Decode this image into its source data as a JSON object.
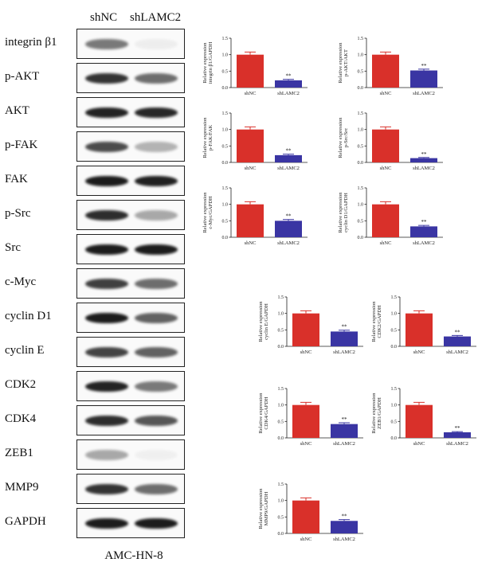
{
  "blot": {
    "lanes": [
      "shNC",
      "shLAMC2"
    ],
    "cell_line": "AMC-HN-8",
    "rows": [
      {
        "label": "integrin β1",
        "intensity": [
          0.55,
          0.05
        ]
      },
      {
        "label": "p-AKT",
        "intensity": [
          0.85,
          0.6
        ]
      },
      {
        "label": "AKT",
        "intensity": [
          0.92,
          0.9
        ]
      },
      {
        "label": "p-FAK",
        "intensity": [
          0.75,
          0.3
        ]
      },
      {
        "label": "FAK",
        "intensity": [
          0.95,
          0.93
        ]
      },
      {
        "label": "p-Src",
        "intensity": [
          0.88,
          0.35
        ]
      },
      {
        "label": "Src",
        "intensity": [
          0.95,
          0.95
        ]
      },
      {
        "label": "c-Myc",
        "intensity": [
          0.8,
          0.6
        ]
      },
      {
        "label": "cyclin D1",
        "intensity": [
          0.95,
          0.65
        ]
      },
      {
        "label": "cyclin E",
        "intensity": [
          0.78,
          0.65
        ]
      },
      {
        "label": "CDK2",
        "intensity": [
          0.92,
          0.55
        ]
      },
      {
        "label": "CDK4",
        "intensity": [
          0.88,
          0.7
        ]
      },
      {
        "label": "ZEB1",
        "intensity": [
          0.35,
          0.04
        ]
      },
      {
        "label": "MMP9",
        "intensity": [
          0.85,
          0.6
        ]
      },
      {
        "label": "GAPDH",
        "intensity": [
          0.95,
          0.95
        ]
      }
    ]
  },
  "colors": {
    "shNC": "#d9302a",
    "shLAMC2": "#3a35a3",
    "errorbar_shNC": "#d9302a",
    "errorbar_shLAMC2": "#3a35a3"
  },
  "chart_data": [
    {
      "type": "bar",
      "ylabel": [
        "Relative expression",
        "integrin β1/GAPDH"
      ],
      "categories": [
        "shNC",
        "shLAMC2"
      ],
      "values": [
        1.0,
        0.22
      ],
      "errors": [
        0.08,
        0.03
      ],
      "ylim": [
        0,
        1.5
      ],
      "yticks": [
        "0.0",
        "0.5",
        "1.0",
        "1.5"
      ],
      "significance": "**"
    },
    {
      "type": "bar",
      "ylabel": [
        "Relative expression",
        "p-AKT/AKT"
      ],
      "categories": [
        "shNC",
        "shLAMC2"
      ],
      "values": [
        1.0,
        0.52
      ],
      "errors": [
        0.08,
        0.04
      ],
      "ylim": [
        0,
        1.5
      ],
      "yticks": [
        "0.0",
        "0.5",
        "1.0",
        "1.5"
      ],
      "significance": "**"
    },
    {
      "type": "bar",
      "ylabel": [
        "Relative expression",
        "p-FAK/FAK"
      ],
      "categories": [
        "shNC",
        "shLAMC2"
      ],
      "values": [
        1.0,
        0.22
      ],
      "errors": [
        0.08,
        0.03
      ],
      "ylim": [
        0,
        1.5
      ],
      "yticks": [
        "0.0",
        "0.5",
        "1.0",
        "1.5"
      ],
      "significance": "**"
    },
    {
      "type": "bar",
      "ylabel": [
        "Relative expression",
        "p-Src/Src"
      ],
      "categories": [
        "shNC",
        "shLAMC2"
      ],
      "values": [
        1.0,
        0.13
      ],
      "errors": [
        0.08,
        0.02
      ],
      "ylim": [
        0,
        1.5
      ],
      "yticks": [
        "0.0",
        "0.5",
        "1.0",
        "1.5"
      ],
      "significance": "**"
    },
    {
      "type": "bar",
      "ylabel": [
        "Relative expression",
        "c-Myc/GAPDH"
      ],
      "categories": [
        "shNC",
        "shLAMC2"
      ],
      "values": [
        1.0,
        0.5
      ],
      "errors": [
        0.08,
        0.04
      ],
      "ylim": [
        0,
        1.5
      ],
      "yticks": [
        "0.0",
        "0.5",
        "1.0",
        "1.5"
      ],
      "significance": "**"
    },
    {
      "type": "bar",
      "ylabel": [
        "Relative expression",
        "cyclin D1/GAPDH"
      ],
      "categories": [
        "shNC",
        "shLAMC2"
      ],
      "values": [
        1.0,
        0.33
      ],
      "errors": [
        0.08,
        0.03
      ],
      "ylim": [
        0,
        1.5
      ],
      "yticks": [
        "0.0",
        "0.5",
        "1.0",
        "1.5"
      ],
      "significance": "**"
    },
    {
      "type": "bar",
      "ylabel": [
        "Relative expression",
        "cyclin E/GAPDH"
      ],
      "categories": [
        "shNC",
        "shLAMC2"
      ],
      "values": [
        1.0,
        0.45
      ],
      "errors": [
        0.08,
        0.04
      ],
      "ylim": [
        0,
        1.5
      ],
      "yticks": [
        "0.0",
        "0.5",
        "1.0",
        "1.5"
      ],
      "significance": "**"
    },
    {
      "type": "bar",
      "ylabel": [
        "Relative expression",
        "CDK2/GAPDH"
      ],
      "categories": [
        "shNC",
        "shLAMC2"
      ],
      "values": [
        1.0,
        0.3
      ],
      "errors": [
        0.08,
        0.03
      ],
      "ylim": [
        0,
        1.5
      ],
      "yticks": [
        "0.0",
        "0.5",
        "1.0",
        "1.5"
      ],
      "significance": "**"
    },
    {
      "type": "bar",
      "ylabel": [
        "Relative expression",
        "CDK4/GAPDH"
      ],
      "categories": [
        "shNC",
        "shLAMC2"
      ],
      "values": [
        1.0,
        0.42
      ],
      "errors": [
        0.08,
        0.04
      ],
      "ylim": [
        0,
        1.5
      ],
      "yticks": [
        "0.0",
        "0.5",
        "1.0",
        "1.5"
      ],
      "significance": "**"
    },
    {
      "type": "bar",
      "ylabel": [
        "Relative expression",
        "ZEB1/GAPDH"
      ],
      "categories": [
        "shNC",
        "shLAMC2"
      ],
      "values": [
        1.0,
        0.17
      ],
      "errors": [
        0.08,
        0.02
      ],
      "ylim": [
        0,
        1.5
      ],
      "yticks": [
        "0.0",
        "0.5",
        "1.0",
        "1.5"
      ],
      "significance": "**"
    },
    {
      "type": "bar",
      "ylabel": [
        "Relative expression",
        "MMP9/GAPDH"
      ],
      "categories": [
        "shNC",
        "shLAMC2"
      ],
      "values": [
        1.0,
        0.38
      ],
      "errors": [
        0.08,
        0.04
      ],
      "ylim": [
        0,
        1.5
      ],
      "yticks": [
        "0.0",
        "0.5",
        "1.0",
        "1.5"
      ],
      "significance": "**"
    }
  ]
}
